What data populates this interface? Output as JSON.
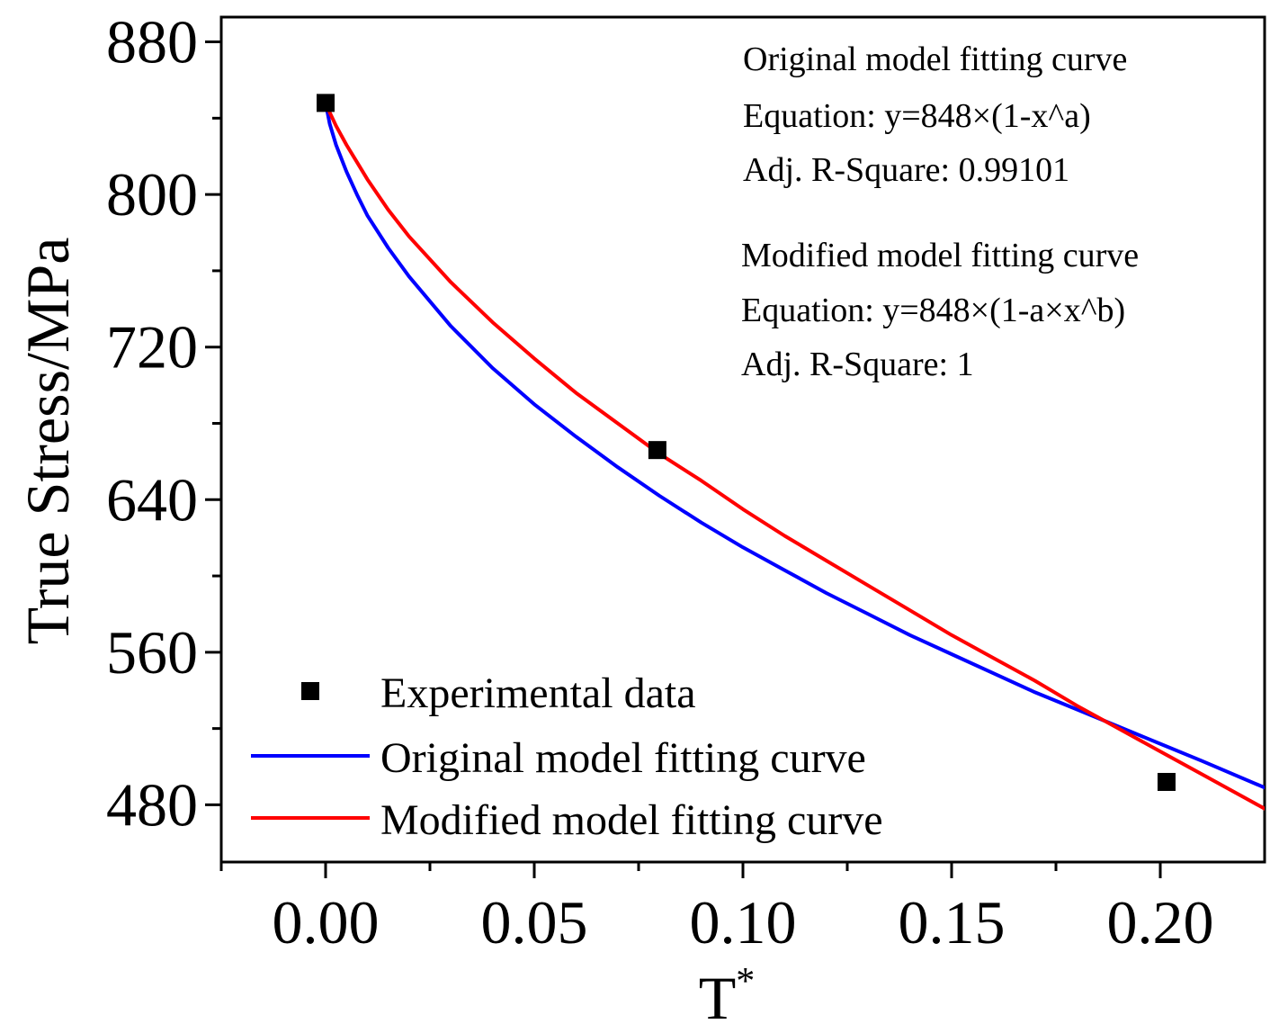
{
  "chart_data": {
    "type": "line",
    "xlabel": "T",
    "xlabel_superscript": "*",
    "ylabel": "True Stress/MPa",
    "xlim": [
      -0.025,
      0.225
    ],
    "ylim": [
      450,
      893
    ],
    "x_ticks": [
      0.0,
      0.05,
      0.1,
      0.15,
      0.2
    ],
    "x_tick_labels": [
      "0.00",
      "0.05",
      "0.10",
      "0.15",
      "0.20"
    ],
    "x_minor_ticks": [
      -0.025,
      0.025,
      0.075,
      0.125,
      0.175
    ],
    "y_ticks": [
      480,
      560,
      640,
      720,
      800,
      880
    ],
    "y_tick_labels": [
      "480",
      "560",
      "640",
      "720",
      "800",
      "880"
    ],
    "y_minor_ticks": [
      520,
      600,
      680,
      760,
      840
    ],
    "grid": false,
    "legend_position": "bottom-left",
    "legend": [
      {
        "label": "Experimental data",
        "kind": "marker",
        "color": "#000000"
      },
      {
        "label": "Original model fitting curve",
        "kind": "line",
        "color": "#0000ff"
      },
      {
        "label": "Modified model fitting curve",
        "kind": "line",
        "color": "#ff0000"
      }
    ],
    "annotations": {
      "original": {
        "title": "Original model fitting curve",
        "equation": "Equation: y=848×(1-x^a)",
        "r2": "Adj. R-Square: 0.99101"
      },
      "modified": {
        "title": "Modified model fitting curve",
        "equation": "Equation: y=848×(1-a×x^b)",
        "r2": "Adj. R-Square: 1"
      }
    },
    "series": [
      {
        "name": "Experimental data",
        "type": "scatter",
        "color": "#000000",
        "x": [
          0.0,
          0.0795,
          0.2015
        ],
        "y": [
          848,
          666,
          492
        ]
      },
      {
        "name": "Original model fitting curve",
        "type": "line",
        "color": "#0000ff",
        "x": [
          0.0,
          0.001,
          0.0025,
          0.005,
          0.0075,
          0.01,
          0.015,
          0.02,
          0.03,
          0.04,
          0.05,
          0.06,
          0.07,
          0.08,
          0.09,
          0.1,
          0.11,
          0.12,
          0.13,
          0.14,
          0.15,
          0.16,
          0.17,
          0.18,
          0.19,
          0.2,
          0.21,
          0.225
        ],
        "y": [
          848,
          837,
          826,
          812,
          800,
          789,
          772,
          757,
          731,
          709,
          690,
          673,
          657,
          642,
          628,
          615,
          603,
          591,
          580,
          569,
          559,
          549,
          539,
          530,
          521,
          512,
          503,
          489
        ]
      },
      {
        "name": "Modified model fitting curve",
        "type": "line",
        "color": "#ff0000",
        "x": [
          0.0,
          0.001,
          0.0025,
          0.005,
          0.0075,
          0.01,
          0.015,
          0.02,
          0.03,
          0.04,
          0.05,
          0.06,
          0.07,
          0.08,
          0.09,
          0.1,
          0.11,
          0.12,
          0.13,
          0.14,
          0.15,
          0.16,
          0.17,
          0.18,
          0.19,
          0.2,
          0.21,
          0.225
        ],
        "y": [
          848,
          843,
          836,
          826,
          817,
          808,
          792,
          778,
          754,
          733,
          714,
          696,
          680,
          664,
          650,
          635,
          621,
          608,
          595,
          582,
          569,
          557,
          545,
          532,
          520,
          508,
          496,
          478
        ]
      }
    ]
  }
}
